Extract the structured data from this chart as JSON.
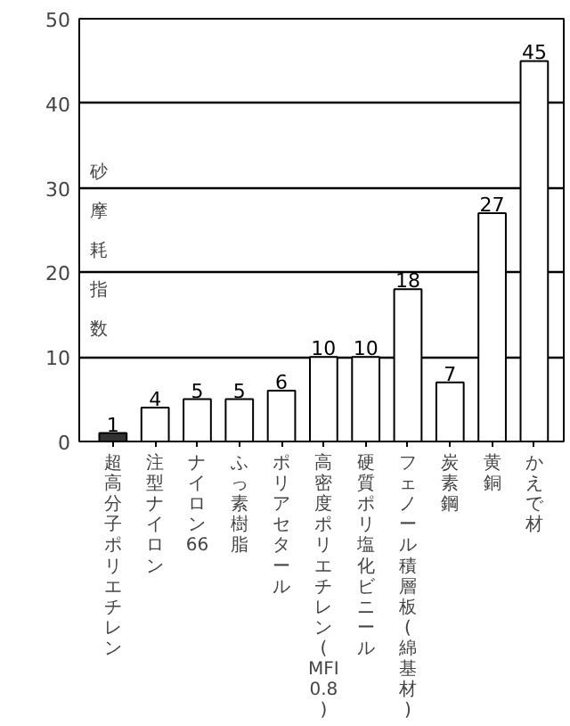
{
  "chart_data": {
    "type": "bar",
    "ylabel": "砂摩耗指数",
    "categories": [
      "超高分子ポリエチレン",
      "注型ナイロン",
      "ナイロン66",
      "ふっ素樹脂",
      "ポリアセタール",
      "高密度ポリエチレン(MFI 0.8)",
      "硬質ポリ塩化ビニール",
      "フェノール積層板(綿基材)",
      "炭素鋼",
      "黄銅",
      "かえで材"
    ],
    "values": [
      1,
      4,
      5,
      5,
      6,
      10,
      10,
      18,
      7,
      27,
      45
    ],
    "colors": [
      "#333333",
      "#ffffff",
      "#ffffff",
      "#ffffff",
      "#ffffff",
      "#ffffff",
      "#ffffff",
      "#ffffff",
      "#ffffff",
      "#ffffff",
      "#ffffff"
    ],
    "ylim": [
      0,
      50
    ],
    "yticks": [
      0,
      10,
      20,
      30,
      40,
      50
    ],
    "grid": "y",
    "data_labels": true
  }
}
